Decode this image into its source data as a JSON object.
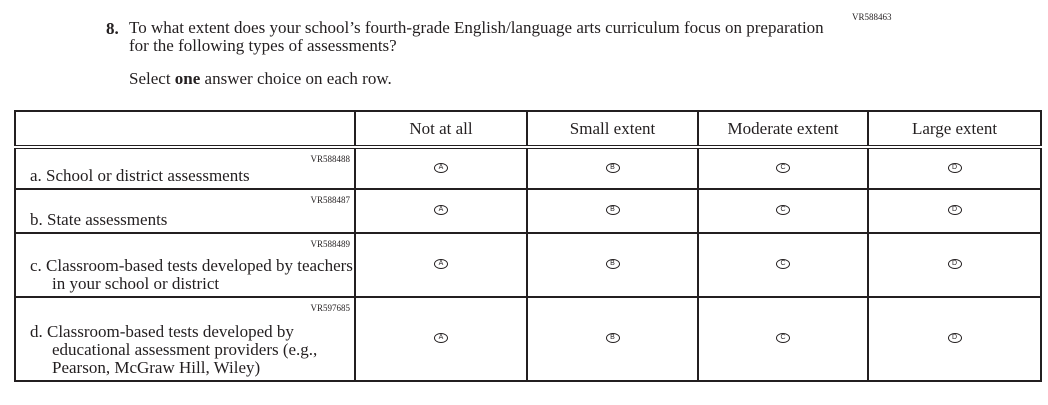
{
  "question": {
    "code": "VR588463",
    "number": "8.",
    "text": "To what extent does your school’s fourth-grade English/language arts curriculum focus on preparation for the following types of assessments?",
    "instruction_pre": "Select ",
    "instruction_bold": "one",
    "instruction_post": " answer choice on each row."
  },
  "columns": [
    "Not at all",
    "Small extent",
    "Moderate extent",
    "Large extent"
  ],
  "rows": [
    {
      "code": "VR588488",
      "label": "a.  School or district assessments",
      "options": [
        "A",
        "B",
        "C",
        "D"
      ]
    },
    {
      "code": "VR588487",
      "label": "b.  State assessments",
      "options": [
        "A",
        "B",
        "C",
        "D"
      ]
    },
    {
      "code": "VR588489",
      "label": "c.  Classroom-based tests developed by teachers in your school or district",
      "options": [
        "A",
        "B",
        "C",
        "D"
      ]
    },
    {
      "code": "VR597685",
      "label": "d.  Classroom-based tests developed by educational assessment providers (e.g., Pearson, McGraw Hill, Wiley)",
      "options": [
        "A",
        "B",
        "C",
        "D"
      ]
    }
  ]
}
